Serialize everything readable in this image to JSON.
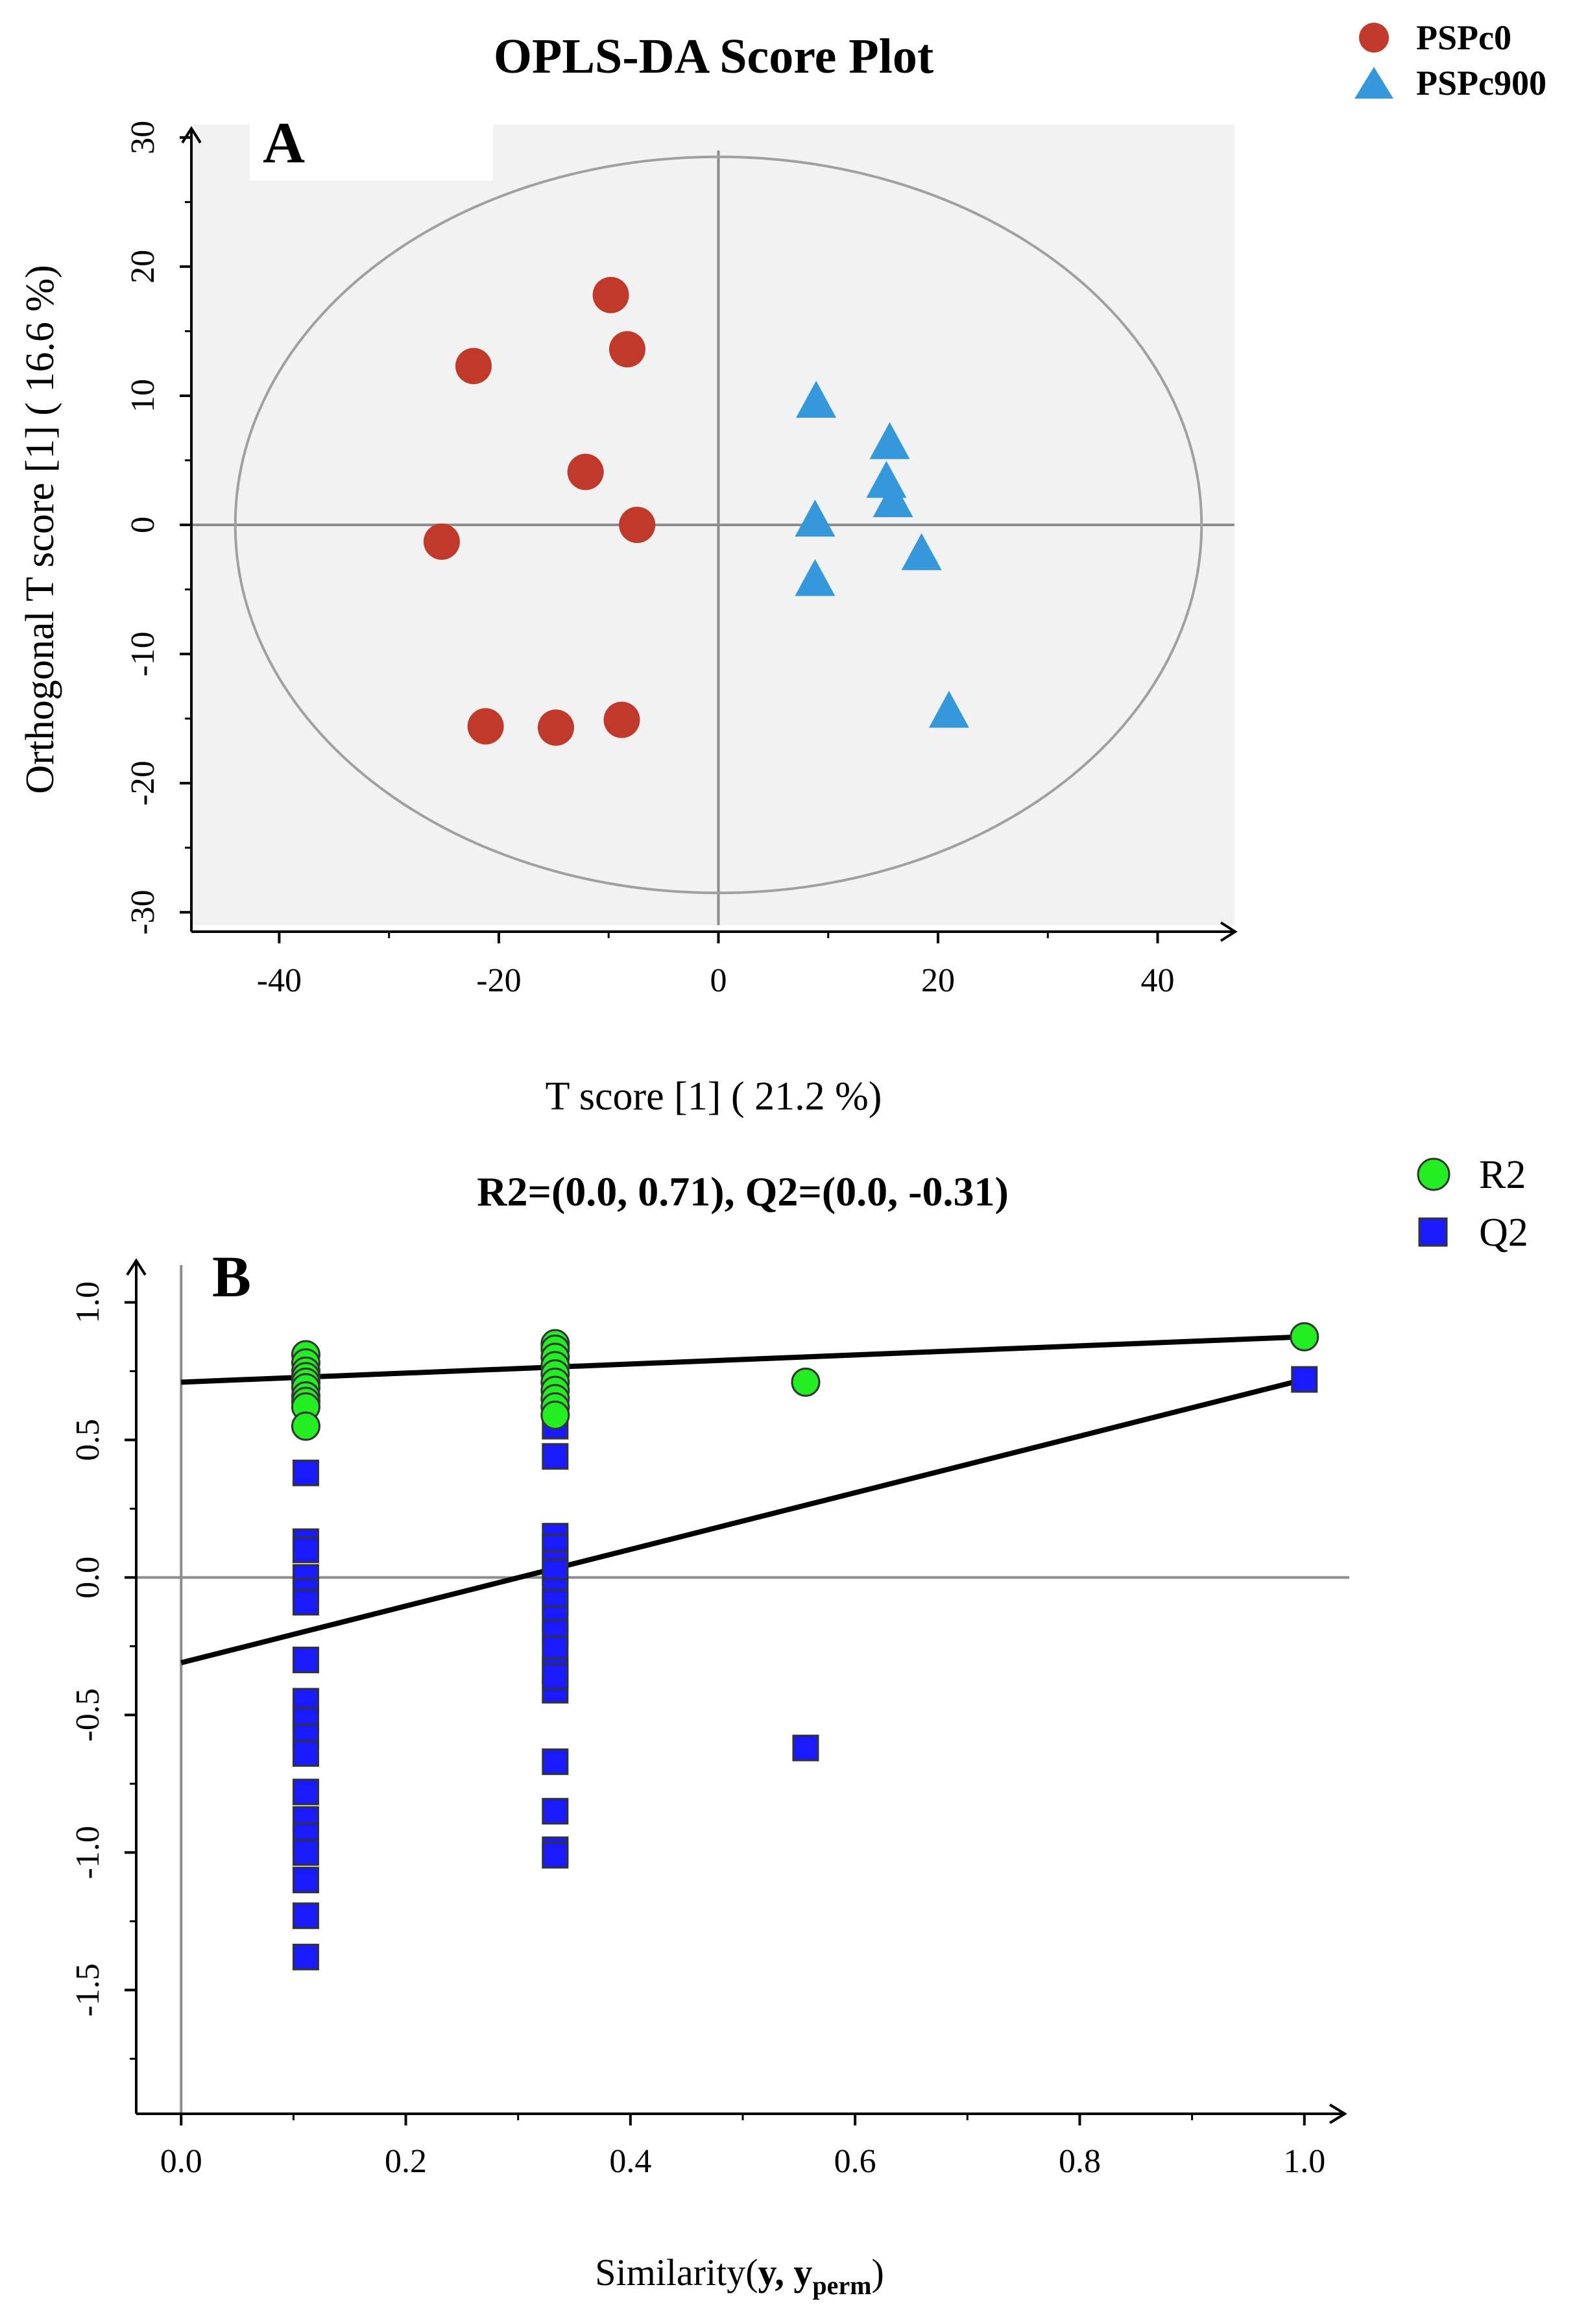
{
  "chart_data": [
    {
      "panel_label": "A",
      "type": "scatter",
      "title": "OPLS-DA Score Plot",
      "xlabel": "T score [1] ( 21.2 %)",
      "ylabel": "Orthogonal T score [1] ( 16.6 %)",
      "xlim": [
        -48,
        47
      ],
      "ylim": [
        -31,
        31
      ],
      "xticks": [
        "-40",
        "-20",
        "0",
        "20",
        "40"
      ],
      "yticks": [
        "-30",
        "-20",
        "-10",
        "0",
        "10",
        "20",
        "30"
      ],
      "xtick_values": [
        -40,
        -20,
        0,
        20,
        40
      ],
      "ytick_values": [
        -30,
        -20,
        -10,
        0,
        10,
        20,
        30
      ],
      "ellipse": {
        "rx": 44,
        "ry": 28.5
      },
      "series": [
        {
          "name": "PSPc0",
          "marker": "circle",
          "color": "#c0392b",
          "points": [
            [
              -9.8,
              17.8
            ],
            [
              -8.3,
              13.6
            ],
            [
              -22.3,
              12.3
            ],
            [
              -12.1,
              4.1
            ],
            [
              -7.4,
              0.0
            ],
            [
              -25.2,
              -1.3
            ],
            [
              -21.2,
              -15.6
            ],
            [
              -14.8,
              -15.7
            ],
            [
              -8.8,
              -15.1
            ]
          ]
        },
        {
          "name": "PSPc900",
          "marker": "triangle",
          "color": "#3498db",
          "points": [
            [
              8.9,
              9.5
            ],
            [
              15.6,
              6.3
            ],
            [
              15.3,
              3.3
            ],
            [
              15.9,
              1.8
            ],
            [
              8.8,
              0.3
            ],
            [
              18.5,
              -2.3
            ],
            [
              8.8,
              -4.3
            ],
            [
              21.0,
              -14.5
            ]
          ]
        }
      ]
    },
    {
      "panel_label": "B",
      "type": "scatter",
      "title": "R2=(0.0, 0.71), Q2=(0.0, -0.31)",
      "xlabel_main": "Similarity(",
      "xlabel_y": "y, y",
      "xlabel_sub": "perm",
      "xlabel_close": ")",
      "ylabel": "",
      "xlim": [
        -0.04,
        1.04
      ],
      "ylim": [
        -1.95,
        1.1
      ],
      "xticks": [
        "0.0",
        "0.2",
        "0.4",
        "0.6",
        "0.8",
        "1.0"
      ],
      "yticks": [
        "-1.5",
        "-1.0",
        "-0.5",
        "0.0",
        "0.5",
        "1.0"
      ],
      "xtick_values": [
        0,
        0.2,
        0.4,
        0.6,
        0.8,
        1.0
      ],
      "ytick_values": [
        -1.5,
        -1.0,
        -0.5,
        0.0,
        0.5,
        1.0
      ],
      "series": [
        {
          "name": "R2",
          "marker": "circle",
          "color": "#22ee22",
          "x": [
            0.111,
            0.111,
            0.111,
            0.111,
            0.111,
            0.111,
            0.111,
            0.111,
            0.111,
            0.111,
            0.333,
            0.333,
            0.333,
            0.333,
            0.333,
            0.333,
            0.333,
            0.333,
            0.333,
            0.333,
            0.556,
            1.0
          ],
          "y": [
            0.81,
            0.78,
            0.75,
            0.73,
            0.71,
            0.69,
            0.66,
            0.64,
            0.62,
            0.55,
            0.85,
            0.83,
            0.8,
            0.77,
            0.74,
            0.71,
            0.68,
            0.65,
            0.62,
            0.59,
            0.71,
            0.875
          ]
        },
        {
          "name": "Q2",
          "marker": "square",
          "color": "#1a1aff",
          "x": [
            0.111,
            0.111,
            0.111,
            0.111,
            0.111,
            0.111,
            0.111,
            0.111,
            0.111,
            0.111,
            0.111,
            0.111,
            0.111,
            0.111,
            0.111,
            0.111,
            0.111,
            0.111,
            0.333,
            0.333,
            0.333,
            0.333,
            0.333,
            0.333,
            0.333,
            0.333,
            0.333,
            0.333,
            0.333,
            0.333,
            0.333,
            0.333,
            0.333,
            0.333,
            0.333,
            0.333,
            0.556,
            1.0
          ],
          "y": [
            0.38,
            0.13,
            0.1,
            0.0,
            -0.05,
            -0.09,
            -0.3,
            -0.45,
            -0.52,
            -0.58,
            -0.64,
            -0.78,
            -0.88,
            -0.94,
            -1.0,
            -1.1,
            -1.23,
            -1.38,
            0.44,
            0.55,
            0.15,
            0.11,
            0.05,
            0.02,
            -0.05,
            -0.09,
            -0.15,
            -0.2,
            -0.26,
            -0.34,
            -0.41,
            -0.67,
            -0.85,
            -0.99,
            -1.01,
            -0.36,
            -0.62,
            0.72
          ]
        }
      ],
      "regression_lines": [
        {
          "name": "R2",
          "intercept": 0.71,
          "end": [
            1.0,
            0.875
          ]
        },
        {
          "name": "Q2",
          "intercept": -0.31,
          "end": [
            1.0,
            0.72
          ]
        }
      ]
    }
  ],
  "colors": {
    "PSPc0": "#c0392b",
    "PSPc900": "#3498db",
    "R2": "#22ee22",
    "Q2": "#1a1aff"
  }
}
